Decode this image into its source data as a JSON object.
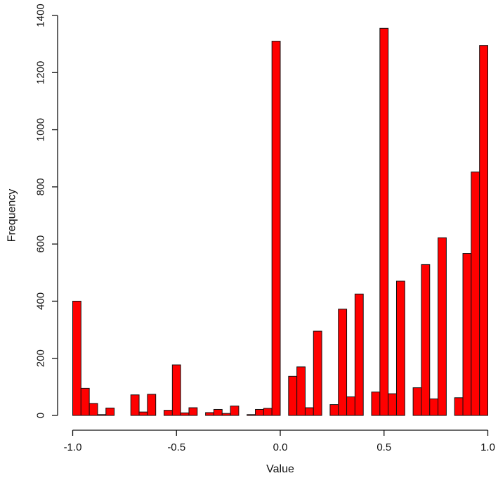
{
  "chart_data": {
    "type": "bar",
    "xlabel": "Value",
    "ylabel": "Frequency",
    "xlim": [
      -1.0,
      1.0
    ],
    "ylim": [
      0,
      1400
    ],
    "bin_width": 0.04,
    "x_ticks": [
      -1.0,
      -0.5,
      0.0,
      0.5,
      1.0
    ],
    "x_tick_labels": [
      "-1.0",
      "-0.5",
      "0.0",
      "0.5",
      "1.0"
    ],
    "y_ticks": [
      0,
      200,
      400,
      600,
      800,
      1000,
      1200,
      1400
    ],
    "y_tick_labels": [
      "0",
      "200",
      "400",
      "600",
      "800",
      "1000",
      "1200",
      "1400"
    ],
    "bins": [
      {
        "x0": -1.0,
        "x1": -0.96,
        "value": 400
      },
      {
        "x0": -0.96,
        "x1": -0.92,
        "value": 95
      },
      {
        "x0": -0.92,
        "x1": -0.88,
        "value": 42
      },
      {
        "x0": -0.88,
        "x1": -0.84,
        "value": 3
      },
      {
        "x0": -0.84,
        "x1": -0.8,
        "value": 26
      },
      {
        "x0": -0.8,
        "x1": -0.76,
        "value": 0
      },
      {
        "x0": -0.76,
        "x1": -0.72,
        "value": 0
      },
      {
        "x0": -0.72,
        "x1": -0.68,
        "value": 72
      },
      {
        "x0": -0.68,
        "x1": -0.64,
        "value": 12
      },
      {
        "x0": -0.64,
        "x1": -0.6,
        "value": 74
      },
      {
        "x0": -0.6,
        "x1": -0.56,
        "value": 0
      },
      {
        "x0": -0.56,
        "x1": -0.52,
        "value": 18
      },
      {
        "x0": -0.52,
        "x1": -0.48,
        "value": 177
      },
      {
        "x0": -0.48,
        "x1": -0.44,
        "value": 9
      },
      {
        "x0": -0.44,
        "x1": -0.4,
        "value": 27
      },
      {
        "x0": -0.4,
        "x1": -0.36,
        "value": 0
      },
      {
        "x0": -0.36,
        "x1": -0.32,
        "value": 10
      },
      {
        "x0": -0.32,
        "x1": -0.28,
        "value": 21
      },
      {
        "x0": -0.28,
        "x1": -0.24,
        "value": 7
      },
      {
        "x0": -0.24,
        "x1": -0.2,
        "value": 33
      },
      {
        "x0": -0.2,
        "x1": -0.16,
        "value": 0
      },
      {
        "x0": -0.16,
        "x1": -0.12,
        "value": 3
      },
      {
        "x0": -0.12,
        "x1": -0.08,
        "value": 21
      },
      {
        "x0": -0.08,
        "x1": -0.04,
        "value": 25
      },
      {
        "x0": -0.04,
        "x1": 0.0,
        "value": 1310
      },
      {
        "x0": 0.0,
        "x1": 0.04,
        "value": 0
      },
      {
        "x0": 0.04,
        "x1": 0.08,
        "value": 137
      },
      {
        "x0": 0.08,
        "x1": 0.12,
        "value": 170
      },
      {
        "x0": 0.12,
        "x1": 0.16,
        "value": 27
      },
      {
        "x0": 0.16,
        "x1": 0.2,
        "value": 295
      },
      {
        "x0": 0.2,
        "x1": 0.24,
        "value": 0
      },
      {
        "x0": 0.24,
        "x1": 0.28,
        "value": 38
      },
      {
        "x0": 0.28,
        "x1": 0.32,
        "value": 372
      },
      {
        "x0": 0.32,
        "x1": 0.36,
        "value": 65
      },
      {
        "x0": 0.36,
        "x1": 0.4,
        "value": 425
      },
      {
        "x0": 0.4,
        "x1": 0.44,
        "value": 0
      },
      {
        "x0": 0.44,
        "x1": 0.48,
        "value": 82
      },
      {
        "x0": 0.48,
        "x1": 0.52,
        "value": 1355
      },
      {
        "x0": 0.52,
        "x1": 0.56,
        "value": 76
      },
      {
        "x0": 0.56,
        "x1": 0.6,
        "value": 470
      },
      {
        "x0": 0.6,
        "x1": 0.64,
        "value": 0
      },
      {
        "x0": 0.64,
        "x1": 0.68,
        "value": 97
      },
      {
        "x0": 0.68,
        "x1": 0.72,
        "value": 528
      },
      {
        "x0": 0.72,
        "x1": 0.76,
        "value": 58
      },
      {
        "x0": 0.76,
        "x1": 0.8,
        "value": 622
      },
      {
        "x0": 0.8,
        "x1": 0.84,
        "value": 0
      },
      {
        "x0": 0.84,
        "x1": 0.88,
        "value": 62
      },
      {
        "x0": 0.88,
        "x1": 0.92,
        "value": 567
      },
      {
        "x0": 0.92,
        "x1": 0.96,
        "value": 852
      },
      {
        "x0": 0.96,
        "x1": 1.0,
        "value": 1295
      }
    ],
    "bar_fill": "#ff0000",
    "bar_stroke": "#111111",
    "grid": false,
    "legend": "none"
  }
}
